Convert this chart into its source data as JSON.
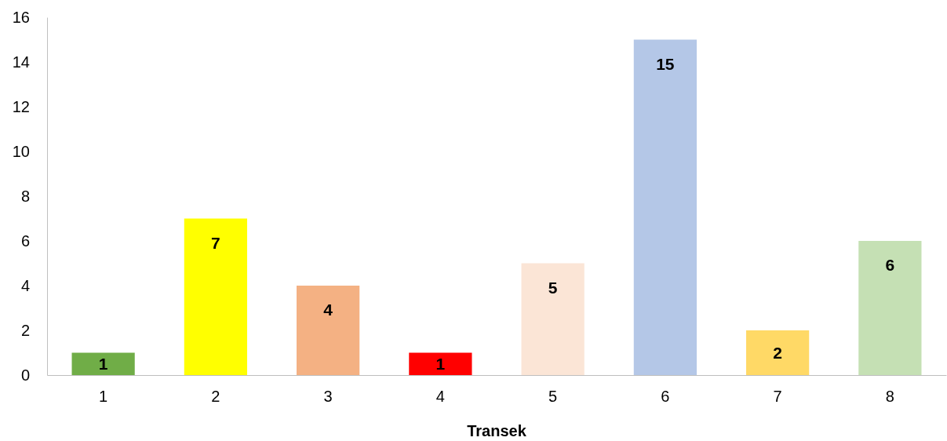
{
  "chart_data": {
    "type": "bar",
    "xlabel": "Transek",
    "categories": [
      "1",
      "2",
      "3",
      "4",
      "5",
      "6",
      "7",
      "8"
    ],
    "values": [
      1,
      7,
      4,
      1,
      5,
      15,
      2,
      6
    ],
    "colors": [
      "#70ad47",
      "#ffff00",
      "#f4b183",
      "#ff0000",
      "#fbe5d6",
      "#b4c7e7",
      "#ffd966",
      "#c5e0b4"
    ],
    "ylim": [
      0,
      16
    ],
    "yticks": [
      0,
      2,
      4,
      6,
      8,
      10,
      12,
      14,
      16
    ],
    "grid": false,
    "data_labels": true
  }
}
